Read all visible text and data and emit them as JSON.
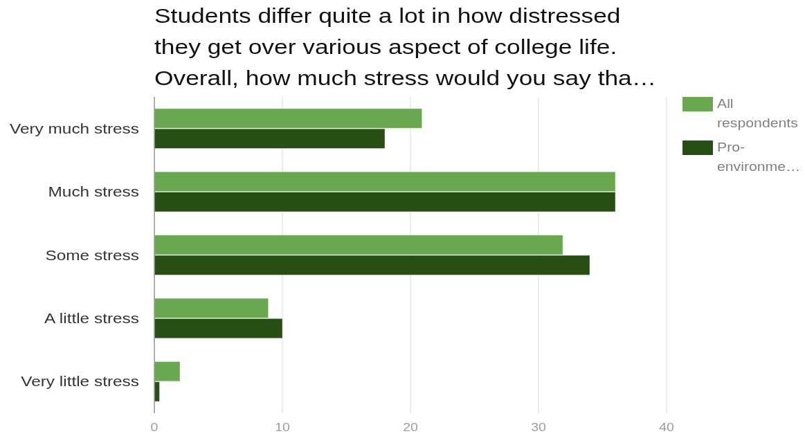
{
  "chart_data": {
    "type": "bar",
    "orientation": "horizontal",
    "title": "Students differ quite a lot in how distressed\nthey get over various aspect of college life.\nOverall, how much stress would you say tha…",
    "categories": [
      "Very much stress",
      "Much stress",
      "Some stress",
      "A little stress",
      "Very little stress"
    ],
    "series": [
      {
        "name": "All respondents",
        "color": "#6aa84f",
        "values": [
          20.9,
          36,
          31.9,
          8.9,
          2
        ]
      },
      {
        "name": "Pro-environme…",
        "color": "#274e13",
        "values": [
          18,
          36,
          34,
          10,
          0.4
        ]
      }
    ],
    "xlim": [
      0,
      40
    ],
    "xticks": [
      0,
      10,
      20,
      30,
      40
    ],
    "grid": "x",
    "legend": "top right"
  }
}
